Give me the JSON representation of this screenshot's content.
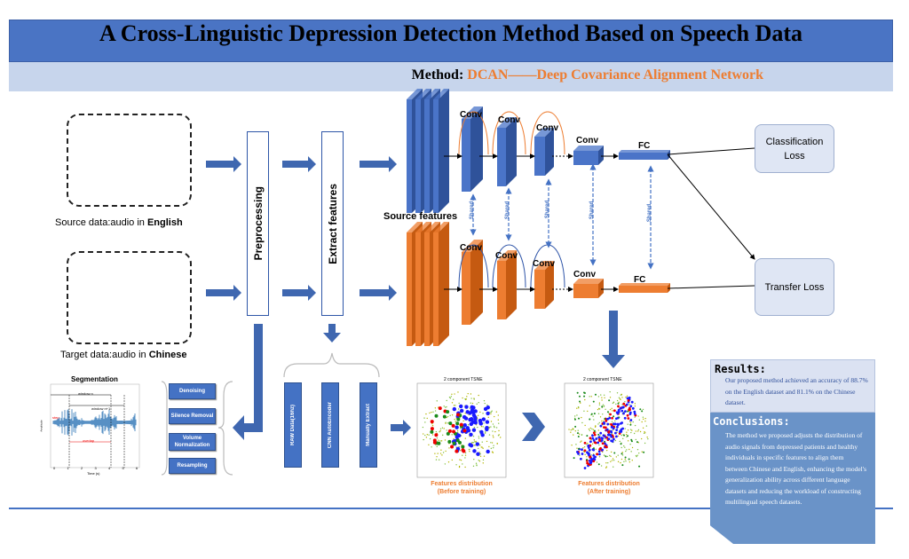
{
  "title": "A Cross-Linguistic Depression Detection Method Based on Speech Data",
  "subtitle": {
    "prefix": "Method: ",
    "method": "DCAN——Deep Covariance Alignment Network"
  },
  "source": {
    "label_prefix": "Source data:audio in ",
    "language": "English"
  },
  "target": {
    "label_prefix": "Target data:audio in ",
    "language": "Chinese"
  },
  "preprocessing": "Preprocessing",
  "extract_features": "Extract features",
  "network": {
    "conv": "Conv",
    "fc": "FC",
    "shared": "Shared",
    "source_features": "Source features"
  },
  "losses": {
    "classification": "Classification Loss",
    "transfer": "Transfer Loss"
  },
  "segmentation": {
    "title": "Segmentation",
    "window_n": "window n",
    "window_n1": "window n+1",
    "step": "step",
    "overlap": "overlap",
    "xlabel": "Time (s)",
    "ylabel": "Amplitude",
    "xticks": [
      "0",
      "1",
      "2",
      "3",
      "4",
      "5",
      "6"
    ]
  },
  "preprocess_steps": [
    "Denoising",
    "Silence Removal",
    "Volume Normalization",
    "Resampling"
  ],
  "feature_types": [
    "RAW Data(16hz)",
    "CNN AutoEncoder",
    "Manually Extract"
  ],
  "tsne": {
    "title": "2 component TSNE",
    "before_caption": [
      "Features distribution",
      "(Before training)"
    ],
    "after_caption": [
      "Features distribution",
      "(After training)"
    ]
  },
  "results": {
    "heading": "Results:",
    "text": "Our proposed method achieved an accuracy of 88.7% on the English dataset and 81.1% on the Chinese dataset."
  },
  "conclusions": {
    "heading": "Conclusions:",
    "text": "The method we proposed adjusts the distribution of audio signals from depressed patients and healthy individuals in specific features to align them between Chinese and English, enhancing the model's generalization ability across different language datasets and reducing the workload of constructing multilingual speech datasets."
  },
  "colors": {
    "blue": "#4472c4",
    "orange": "#ed7d31",
    "title_bar": "#4a74c4",
    "sub_bar": "#c7d5ec"
  }
}
